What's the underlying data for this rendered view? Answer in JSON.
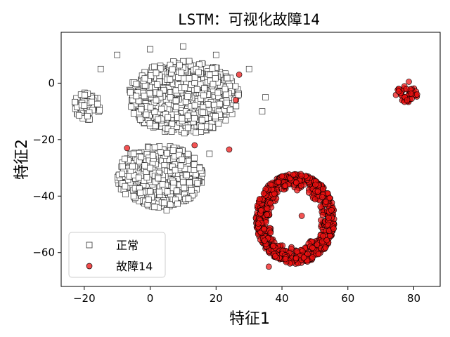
{
  "chart_data": {
    "type": "scatter",
    "title": "LSTM：可视化故障14",
    "xlabel": "特征1",
    "ylabel": "特征2",
    "xlim": [
      -27,
      88
    ],
    "ylim": [
      -72,
      18
    ],
    "xticks": [
      -20,
      0,
      20,
      40,
      60,
      80
    ],
    "yticks": [
      0,
      -20,
      -40,
      -60
    ],
    "xtick_labels": [
      "−20",
      "0",
      "20",
      "40",
      "60",
      "80"
    ],
    "ytick_labels": [
      "0",
      "−20",
      "−40",
      "−60"
    ],
    "legend_position": "lower-left",
    "grid": false,
    "series": [
      {
        "name": "正常",
        "marker": "square",
        "color": "#ffffff",
        "edge_color": "#333333",
        "clusters": [
          {
            "shape": "blob",
            "cx": 10,
            "cy": -5,
            "rx": 17,
            "ry": 13,
            "count": 650
          },
          {
            "shape": "blob",
            "cx": 3,
            "cy": -33,
            "rx": 13,
            "ry": 11,
            "count": 420
          },
          {
            "shape": "blob",
            "cx": -19,
            "cy": -8,
            "rx": 4,
            "ry": 5,
            "count": 60
          }
        ],
        "sample_points": [
          [
            -20,
            -8
          ],
          [
            -15,
            5
          ],
          [
            -10,
            10
          ],
          [
            0,
            12
          ],
          [
            10,
            13
          ],
          [
            20,
            10
          ],
          [
            30,
            5
          ],
          [
            35,
            -5
          ],
          [
            34,
            -10
          ],
          [
            -5,
            -25
          ],
          [
            0,
            -30
          ],
          [
            10,
            -35
          ],
          [
            5,
            -45
          ],
          [
            -5,
            -40
          ],
          [
            15,
            -30
          ],
          [
            18,
            -25
          ]
        ]
      },
      {
        "name": "故障14",
        "marker": "circle",
        "color": "#ee1111",
        "edge_color": "#000000",
        "clusters": [
          {
            "shape": "ring",
            "cx": 44,
            "cy": -48,
            "rx": 12,
            "ry": 16,
            "count": 750
          },
          {
            "shape": "blob",
            "cx": 78,
            "cy": -4,
            "rx": 3.5,
            "ry": 3,
            "count": 45
          }
        ],
        "sample_points": [
          [
            27,
            3
          ],
          [
            26,
            -6
          ],
          [
            -7,
            -23
          ],
          [
            13.5,
            -22
          ],
          [
            24,
            -23.5
          ],
          [
            40,
            -33
          ],
          [
            46,
            -47
          ],
          [
            36,
            -65
          ],
          [
            55,
            -45
          ],
          [
            78,
            -6
          ],
          [
            81,
            -4
          ],
          [
            78.5,
            0.5
          ]
        ]
      }
    ]
  }
}
